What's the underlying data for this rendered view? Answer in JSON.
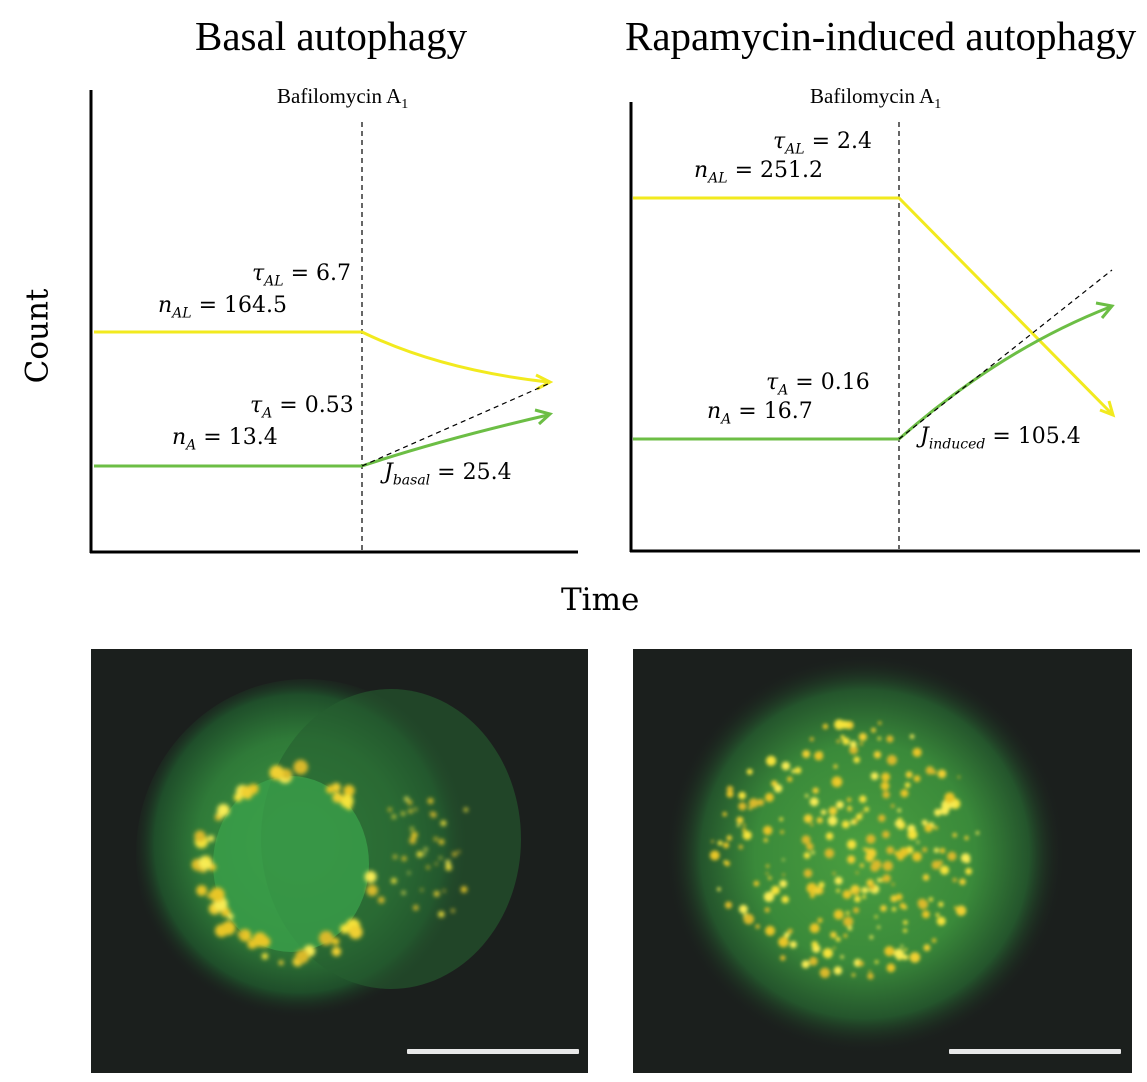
{
  "titles": {
    "left": "Basal autophagy",
    "right": "Rapamycin-induced autophagy"
  },
  "axes": {
    "y_label": "Count",
    "x_label": "Time"
  },
  "treatment_label": {
    "text": "Bafilomycin A",
    "subscript": "1"
  },
  "colors": {
    "autolysosome_line": "#f2ea1e",
    "autophagosome_line": "#6cbe45",
    "cell_background": "#1b1f1d",
    "scale_bar": "#e8e8e8"
  },
  "panels": [
    {
      "id": "basal",
      "tau_AL": {
        "symbol": "τ",
        "sub": "AL",
        "value": "6.7"
      },
      "n_AL": {
        "symbol": "n",
        "sub": "AL",
        "value": "164.5"
      },
      "tau_A": {
        "symbol": "τ",
        "sub": "A",
        "value": "0.53"
      },
      "n_A": {
        "symbol": "n",
        "sub": "A",
        "value": "13.4"
      },
      "J": {
        "symbol": "J",
        "sub": "basal",
        "value": "25.4"
      }
    },
    {
      "id": "induced",
      "tau_AL": {
        "symbol": "τ",
        "sub": "AL",
        "value": "2.4"
      },
      "n_AL": {
        "symbol": "n",
        "sub": "AL",
        "value": "251.2"
      },
      "tau_A": {
        "symbol": "τ",
        "sub": "A",
        "value": "0.16"
      },
      "n_A": {
        "symbol": "n",
        "sub": "A",
        "value": "16.7"
      },
      "J": {
        "symbol": "J",
        "sub": "induced",
        "value": "105.4"
      }
    }
  ],
  "micrographs": [
    {
      "id": "basal-cell",
      "pattern": "ring"
    },
    {
      "id": "induced-cell",
      "pattern": "dense"
    }
  ]
}
